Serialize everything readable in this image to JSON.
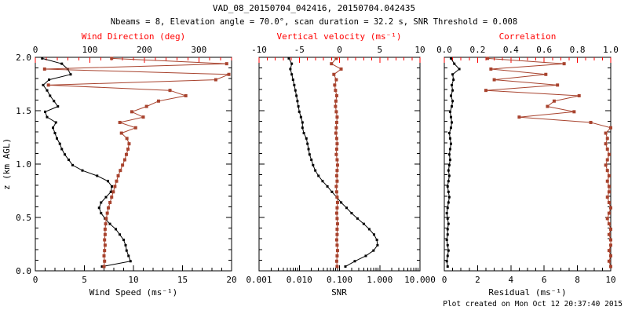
{
  "header": {
    "title": "VAD_08_20150704_042416, 20150704.042435",
    "subtitle": "Nbeams = 8, Elevation angle = 70.0°, scan duration = 32.2 s, SNR Threshold = 0.008"
  },
  "footer": {
    "created": "Plot created on Mon Oct 12 20:37:40 2015"
  },
  "colors": {
    "axis_red": "#ff0000",
    "series_brick": "#a8432e",
    "series_black": "#000000",
    "frame": "#000000"
  },
  "y_axis": {
    "label": "z (km AGL)",
    "range": [
      0,
      2
    ],
    "major": [
      0,
      0.5,
      1.0,
      1.5,
      2.0
    ],
    "labels": [
      "0.0",
      "0.5",
      "1.0",
      "1.5",
      "2.0"
    ],
    "minor_step": 0.1
  },
  "chart_data": [
    {
      "type": "line",
      "x_bottom": {
        "label": "Wind Speed (ms⁻¹)",
        "scale": "linear",
        "range": [
          0,
          20
        ],
        "major": [
          0,
          5,
          10,
          15,
          20
        ],
        "labels": [
          "0",
          "5",
          "10",
          "15",
          "20"
        ],
        "minor_step": 1
      },
      "x_top": {
        "label": "Wind Direction (deg)",
        "scale": "linear",
        "range": [
          0,
          360
        ],
        "major": [
          0,
          100,
          200,
          300
        ],
        "labels": [
          "0",
          "100",
          "200",
          "300"
        ],
        "minor_step": 20
      },
      "z": [
        0.04,
        0.09,
        0.14,
        0.19,
        0.24,
        0.29,
        0.34,
        0.39,
        0.44,
        0.49,
        0.54,
        0.59,
        0.64,
        0.69,
        0.74,
        0.79,
        0.84,
        0.89,
        0.94,
        0.99,
        1.04,
        1.09,
        1.14,
        1.19,
        1.24,
        1.29,
        1.34,
        1.39,
        1.44,
        1.49,
        1.54,
        1.59,
        1.64,
        1.69,
        1.74,
        1.79,
        1.84,
        1.89,
        1.94,
        1.99
      ],
      "series": [
        {
          "name": "wind-speed",
          "axis": "bottom",
          "color": "black",
          "values": [
            6.8,
            9.7,
            9.5,
            9.3,
            9.2,
            9.0,
            8.6,
            8.2,
            7.6,
            7.1,
            6.7,
            6.5,
            6.7,
            7.2,
            7.7,
            7.8,
            7.4,
            6.3,
            4.8,
            3.8,
            3.4,
            3.0,
            2.7,
            2.5,
            2.2,
            2.0,
            1.8,
            2.1,
            1.2,
            1.0,
            2.3,
            1.9,
            1.5,
            1.2,
            0.8,
            1.4,
            3.6,
            3.3,
            2.7,
            0.7
          ]
        },
        {
          "name": "wind-direction",
          "axis": "top",
          "color": "brick",
          "values": [
            126,
            127,
            126,
            127,
            128,
            127,
            128,
            128,
            129,
            130,
            132,
            134,
            137,
            140,
            143,
            146,
            149,
            152,
            156,
            160,
            164,
            167,
            170,
            172,
            168,
            158,
            184,
            155,
            198,
            177,
            204,
            226,
            276,
            247,
            24,
            331,
            355,
            17,
            351,
            140
          ]
        }
      ]
    },
    {
      "type": "line",
      "x_bottom": {
        "label": "SNR",
        "scale": "log",
        "range": [
          0.001,
          10
        ],
        "major": [
          0.001,
          0.01,
          0.1,
          1,
          10
        ],
        "labels": [
          "0.001",
          "0.010",
          "0.100",
          "1.000",
          "10.000"
        ],
        "minor_step": 0
      },
      "x_top": {
        "label": "Vertical velocity (ms⁻¹)",
        "scale": "linear",
        "range": [
          -10,
          10
        ],
        "major": [
          -10,
          -5,
          0,
          5,
          10
        ],
        "labels": [
          "-10",
          "-5",
          "0",
          "5",
          "10"
        ],
        "minor_step": 1
      },
      "z": [
        0.04,
        0.09,
        0.14,
        0.19,
        0.24,
        0.29,
        0.34,
        0.39,
        0.44,
        0.49,
        0.54,
        0.59,
        0.64,
        0.69,
        0.74,
        0.79,
        0.84,
        0.89,
        0.94,
        0.99,
        1.04,
        1.09,
        1.14,
        1.19,
        1.24,
        1.29,
        1.34,
        1.39,
        1.44,
        1.49,
        1.54,
        1.59,
        1.64,
        1.69,
        1.74,
        1.79,
        1.84,
        1.89,
        1.94,
        1.99
      ],
      "series": [
        {
          "name": "snr",
          "axis": "bottom",
          "color": "black",
          "values": [
            0.14,
            0.24,
            0.45,
            0.7,
            0.88,
            0.85,
            0.72,
            0.55,
            0.4,
            0.28,
            0.2,
            0.15,
            0.11,
            0.085,
            0.065,
            0.05,
            0.038,
            0.03,
            0.025,
            0.022,
            0.02,
            0.018,
            0.017,
            0.016,
            0.015,
            0.013,
            0.012,
            0.012,
            0.011,
            0.01,
            0.0095,
            0.009,
            0.0085,
            0.008,
            0.0075,
            0.007,
            0.0065,
            0.006,
            0.0065,
            0.0055
          ]
        },
        {
          "name": "vertical-velocity",
          "axis": "top",
          "color": "brick",
          "values": [
            -0.3,
            -0.35,
            -0.3,
            -0.25,
            -0.3,
            -0.35,
            -0.3,
            -0.3,
            -0.25,
            -0.3,
            -0.35,
            -0.3,
            -0.25,
            -0.3,
            -0.35,
            -0.4,
            -0.3,
            -0.35,
            -0.3,
            -0.25,
            -0.3,
            -0.4,
            -0.35,
            -0.3,
            -0.35,
            -0.45,
            -0.4,
            -0.35,
            -0.3,
            -0.4,
            -0.5,
            -0.45,
            -0.35,
            -0.5,
            -0.6,
            -0.4,
            -0.7,
            0.2,
            -1.0,
            -0.4
          ]
        }
      ]
    },
    {
      "type": "line",
      "x_bottom": {
        "label": "Residual (ms⁻¹)",
        "scale": "linear",
        "range": [
          0,
          10
        ],
        "major": [
          0,
          2,
          4,
          6,
          8,
          10
        ],
        "labels": [
          "0",
          "2",
          "4",
          "6",
          "8",
          "10"
        ],
        "minor_step": 0.5
      },
      "x_top": {
        "label": "Correlation",
        "scale": "linear",
        "range": [
          0,
          1
        ],
        "major": [
          0,
          0.2,
          0.4,
          0.6,
          0.8,
          1.0
        ],
        "labels": [
          "0.0",
          "0.2",
          "0.4",
          "0.6",
          "0.8",
          "1.0"
        ],
        "minor_step": 0.05
      },
      "z": [
        0.04,
        0.09,
        0.14,
        0.19,
        0.24,
        0.29,
        0.34,
        0.39,
        0.44,
        0.49,
        0.54,
        0.59,
        0.64,
        0.69,
        0.74,
        0.79,
        0.84,
        0.89,
        0.94,
        0.99,
        1.04,
        1.09,
        1.14,
        1.19,
        1.24,
        1.29,
        1.34,
        1.39,
        1.44,
        1.49,
        1.54,
        1.59,
        1.64,
        1.69,
        1.74,
        1.79,
        1.84,
        1.89,
        1.94,
        1.99
      ],
      "series": [
        {
          "name": "residual",
          "axis": "bottom",
          "color": "black",
          "values": [
            0.2,
            0.15,
            0.2,
            0.25,
            0.2,
            0.15,
            0.2,
            0.2,
            0.25,
            0.2,
            0.15,
            0.2,
            0.25,
            0.3,
            0.25,
            0.2,
            0.25,
            0.3,
            0.25,
            0.3,
            0.35,
            0.3,
            0.35,
            0.4,
            0.35,
            0.3,
            0.4,
            0.45,
            0.4,
            0.35,
            0.45,
            0.5,
            0.4,
            0.5,
            0.45,
            0.55,
            0.5,
            0.9,
            0.6,
            0.4
          ]
        },
        {
          "name": "correlation",
          "axis": "top",
          "color": "brick",
          "values": [
            1.0,
            0.99,
            1.0,
            0.99,
            1.0,
            1.0,
            0.99,
            1.0,
            0.99,
            0.98,
            0.99,
            1.0,
            0.99,
            0.98,
            0.99,
            0.99,
            0.98,
            0.99,
            0.98,
            0.97,
            0.98,
            0.99,
            0.98,
            0.97,
            0.98,
            0.97,
            1.0,
            0.88,
            0.45,
            0.78,
            0.62,
            0.66,
            0.81,
            0.25,
            0.68,
            0.3,
            0.61,
            0.28,
            0.72,
            0.26
          ]
        }
      ]
    }
  ]
}
